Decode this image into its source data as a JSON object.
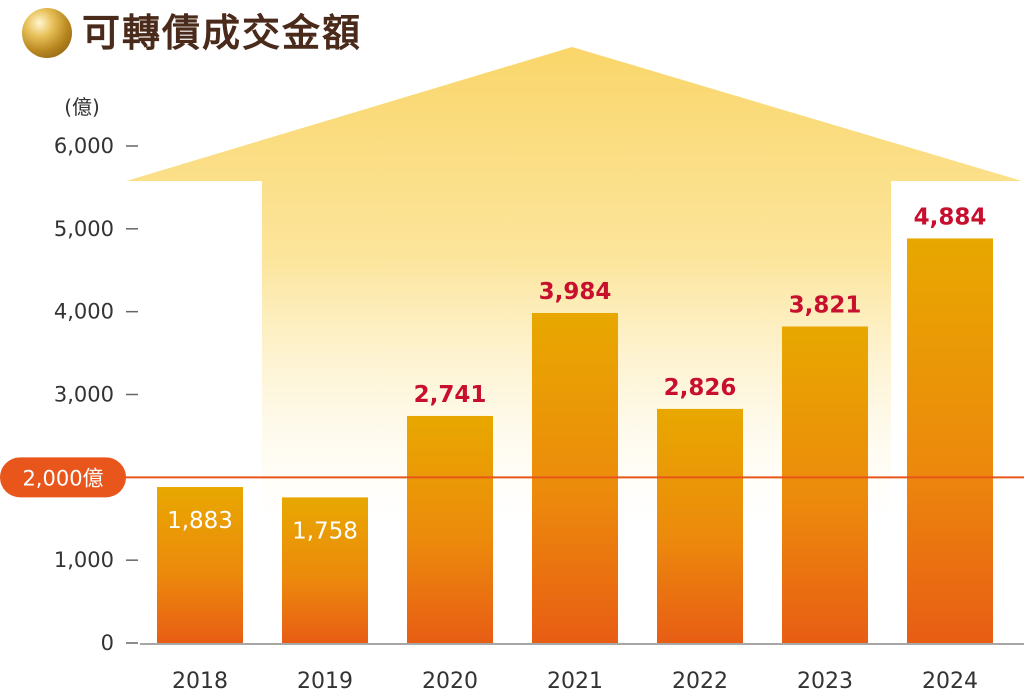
{
  "title": "可轉債成交金額",
  "colors": {
    "title": "#4a2a1a",
    "bar_top": "#e8a800",
    "bar_bottom": "#e85d14",
    "highlight_value": "#c8102e",
    "inner_value": "#ffffff",
    "reference_line": "#e8561c",
    "arrow": "#fad66a",
    "axis_text": "#333333"
  },
  "reference": {
    "label": "2,000億",
    "value": 2000
  },
  "chart_data": {
    "type": "bar",
    "title": "可轉債成交金額",
    "unit_label": "(億)",
    "categories": [
      "2018",
      "2019",
      "2020",
      "2021",
      "2022",
      "2023",
      "2024"
    ],
    "values": [
      1883,
      1758,
      2741,
      3984,
      2826,
      3821,
      4884
    ],
    "value_labels": [
      "1,883",
      "1,758",
      "2,741",
      "3,984",
      "2,826",
      "3,821",
      "4,884"
    ],
    "ylim": [
      0,
      6000
    ],
    "yticks": [
      0,
      1000,
      2000,
      3000,
      4000,
      5000,
      6000
    ],
    "ytick_labels": [
      "0",
      "1,000",
      "2,000",
      "3,000",
      "4,000",
      "5,000",
      "6,000"
    ],
    "grid": false,
    "legend": "none"
  }
}
